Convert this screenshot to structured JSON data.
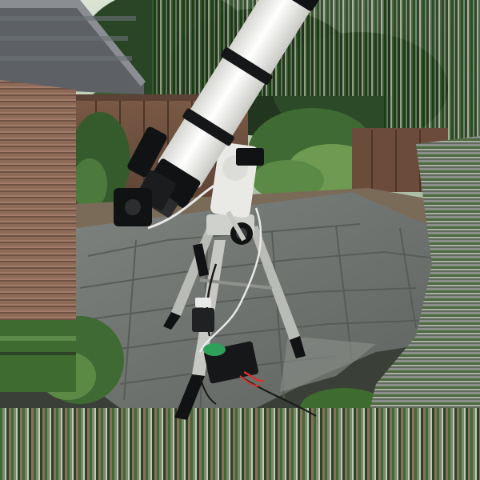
{
  "image": {
    "kind": "photograph",
    "subject": "telescope-on-equatorial-mount",
    "colors": {
      "sky": "#c9d6c2",
      "foliage_dark": "#22351f",
      "foliage_mid": "#3f6a33",
      "foliage_light": "#6e9a52",
      "fence": "#6b4c3a",
      "fence_dark": "#4b3528",
      "paving": "#6f7370",
      "paving_dark": "#4f5451",
      "paving_light": "#8b8f8a",
      "gravel": "#7a6a58",
      "tube_white": "#f2f2f0",
      "tube_shadow": "#cfcfcb",
      "mount_white": "#e9e9e6",
      "tripod_metal": "#b9bbb6",
      "black": "#111213",
      "accent_green": "#2fa05a",
      "cable": "#1a1a1a",
      "cable_white": "#e8e8e8",
      "red_wire": "#d8322a",
      "roof": "#5d6166",
      "house_wall": "#8a6552",
      "glitch_green": "#3e6b2f"
    }
  }
}
